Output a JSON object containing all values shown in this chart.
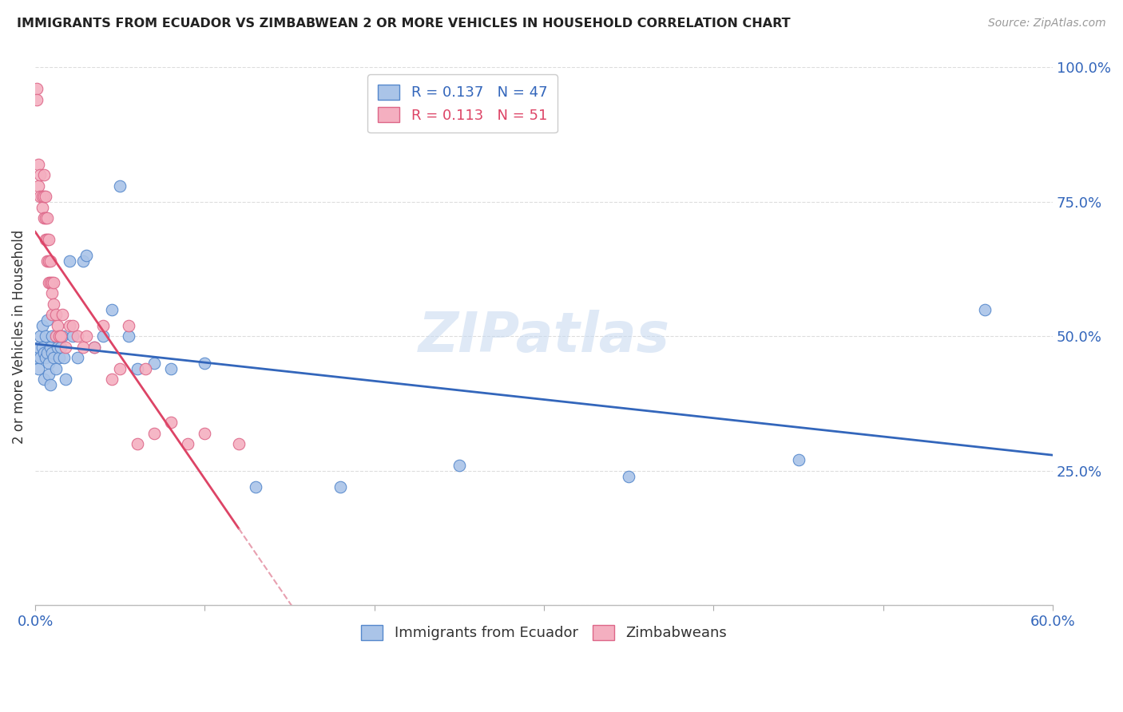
{
  "title": "IMMIGRANTS FROM ECUADOR VS ZIMBABWEAN 2 OR MORE VEHICLES IN HOUSEHOLD CORRELATION CHART",
  "source": "Source: ZipAtlas.com",
  "ylabel": "2 or more Vehicles in Household",
  "xlim": [
    0.0,
    0.6
  ],
  "ylim": [
    0.0,
    1.0
  ],
  "xtick_positions": [
    0.0,
    0.1,
    0.2,
    0.3,
    0.4,
    0.5,
    0.6
  ],
  "xticklabels": [
    "0.0%",
    "",
    "",
    "",
    "",
    "",
    "60.0%"
  ],
  "ytick_positions": [
    0.0,
    0.25,
    0.5,
    0.75,
    1.0
  ],
  "yticklabels": [
    "",
    "25.0%",
    "50.0%",
    "75.0%",
    "100.0%"
  ],
  "ecuador_color": "#aac4e8",
  "zimbabwe_color": "#f4afc0",
  "ecuador_edge": "#5588cc",
  "zimbabwe_edge": "#dd6688",
  "trendline_ecuador_color": "#3366bb",
  "trendline_zimbabwe_color": "#dd4466",
  "trendline_zimbabwe_dashed_color": "#e8a0b0",
  "R_ecuador": 0.137,
  "N_ecuador": 47,
  "R_zimbabwe": 0.113,
  "N_zimbabwe": 51,
  "watermark": "ZIPatlas",
  "legend_ecuador_color": "#3366bb",
  "legend_zimbabwe_color": "#dd4466",
  "ecuador_x": [
    0.001,
    0.002,
    0.002,
    0.003,
    0.003,
    0.004,
    0.004,
    0.005,
    0.005,
    0.006,
    0.006,
    0.007,
    0.007,
    0.008,
    0.008,
    0.009,
    0.009,
    0.01,
    0.01,
    0.011,
    0.012,
    0.013,
    0.014,
    0.015,
    0.016,
    0.017,
    0.018,
    0.02,
    0.022,
    0.025,
    0.028,
    0.03,
    0.035,
    0.04,
    0.045,
    0.05,
    0.055,
    0.06,
    0.07,
    0.08,
    0.1,
    0.13,
    0.18,
    0.25,
    0.35,
    0.45,
    0.56
  ],
  "ecuador_y": [
    0.46,
    0.48,
    0.44,
    0.5,
    0.46,
    0.48,
    0.52,
    0.42,
    0.47,
    0.46,
    0.5,
    0.53,
    0.47,
    0.45,
    0.43,
    0.41,
    0.48,
    0.47,
    0.5,
    0.46,
    0.44,
    0.48,
    0.46,
    0.48,
    0.5,
    0.46,
    0.42,
    0.64,
    0.5,
    0.46,
    0.64,
    0.65,
    0.48,
    0.5,
    0.55,
    0.78,
    0.5,
    0.44,
    0.45,
    0.44,
    0.45,
    0.22,
    0.22,
    0.26,
    0.24,
    0.27,
    0.55
  ],
  "zimbabwe_x": [
    0.001,
    0.001,
    0.002,
    0.002,
    0.003,
    0.003,
    0.004,
    0.004,
    0.005,
    0.005,
    0.005,
    0.006,
    0.006,
    0.006,
    0.007,
    0.007,
    0.007,
    0.008,
    0.008,
    0.008,
    0.009,
    0.009,
    0.01,
    0.01,
    0.01,
    0.011,
    0.011,
    0.012,
    0.012,
    0.013,
    0.014,
    0.015,
    0.016,
    0.018,
    0.02,
    0.022,
    0.025,
    0.028,
    0.03,
    0.035,
    0.04,
    0.045,
    0.05,
    0.055,
    0.06,
    0.065,
    0.07,
    0.08,
    0.09,
    0.1,
    0.12
  ],
  "zimbabwe_y": [
    0.96,
    0.94,
    0.82,
    0.78,
    0.8,
    0.76,
    0.76,
    0.74,
    0.8,
    0.76,
    0.72,
    0.76,
    0.72,
    0.68,
    0.72,
    0.68,
    0.64,
    0.68,
    0.64,
    0.6,
    0.64,
    0.6,
    0.6,
    0.58,
    0.54,
    0.6,
    0.56,
    0.54,
    0.5,
    0.52,
    0.5,
    0.5,
    0.54,
    0.48,
    0.52,
    0.52,
    0.5,
    0.48,
    0.5,
    0.48,
    0.52,
    0.42,
    0.44,
    0.52,
    0.3,
    0.44,
    0.32,
    0.34,
    0.3,
    0.32,
    0.3
  ]
}
